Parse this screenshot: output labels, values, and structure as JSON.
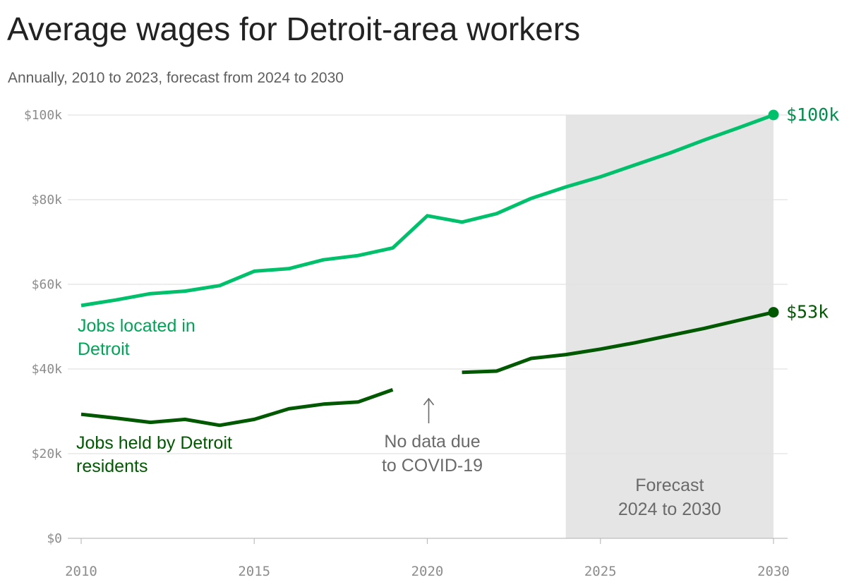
{
  "header": {
    "title": "Average wages for Detroit-area workers",
    "subtitle": "Annually, 2010 to 2023, forecast from 2024 to 2030"
  },
  "chart_data": {
    "type": "line",
    "title": "Average wages for Detroit-area workers",
    "subtitle": "Annually, 2010 to 2023, forecast from 2024 to 2030",
    "xlabel": "",
    "ylabel": "",
    "xlim": [
      2010,
      2030
    ],
    "ylim": [
      0,
      100000
    ],
    "x_ticks": [
      2010,
      2015,
      2020,
      2025,
      2030
    ],
    "x_tick_labels": [
      "2010",
      "2015",
      "2020",
      "2025",
      "2030"
    ],
    "y_ticks": [
      0,
      20000,
      40000,
      60000,
      80000,
      100000
    ],
    "y_tick_labels": [
      "$0",
      "$20k",
      "$40k",
      "$60k",
      "$80k",
      "$100k"
    ],
    "grid": "horizontal",
    "series": [
      {
        "name": "Jobs located in Detroit",
        "label_lines": [
          "Jobs located in",
          "Detroit"
        ],
        "color": "#00c06b",
        "label_color": "#00a457",
        "end_label": "$100k",
        "end_label_color": "#008f4c",
        "segments": [
          [
            [
              2010,
              55000
            ],
            [
              2011,
              56300
            ],
            [
              2012,
              57800
            ],
            [
              2013,
              58400
            ],
            [
              2014,
              59700
            ],
            [
              2015,
              63100
            ],
            [
              2016,
              63700
            ],
            [
              2017,
              65800
            ],
            [
              2018,
              66800
            ],
            [
              2019,
              68600
            ],
            [
              2020,
              76200
            ],
            [
              2021,
              74700
            ],
            [
              2022,
              76700
            ],
            [
              2023,
              80300
            ],
            [
              2024,
              83000
            ],
            [
              2025,
              85400
            ],
            [
              2026,
              88200
            ],
            [
              2027,
              91000
            ],
            [
              2028,
              94100
            ],
            [
              2029,
              97000
            ],
            [
              2030,
              100000
            ]
          ]
        ]
      },
      {
        "name": "Jobs held by Detroit residents",
        "label_lines": [
          "Jobs held by Detroit",
          "residents"
        ],
        "color": "#005800",
        "label_color": "#005800",
        "end_label": "$53k",
        "end_label_color": "#005800",
        "segments": [
          [
            [
              2010,
              29300
            ],
            [
              2011,
              28400
            ],
            [
              2012,
              27400
            ],
            [
              2013,
              28100
            ],
            [
              2014,
              26700
            ],
            [
              2015,
              28100
            ],
            [
              2016,
              30600
            ],
            [
              2017,
              31700
            ],
            [
              2018,
              32200
            ],
            [
              2019,
              35100
            ]
          ],
          [
            [
              2021,
              39200
            ],
            [
              2022,
              39500
            ],
            [
              2023,
              42500
            ],
            [
              2024,
              43400
            ],
            [
              2025,
              44700
            ],
            [
              2026,
              46200
            ],
            [
              2027,
              47900
            ],
            [
              2028,
              49600
            ],
            [
              2029,
              51500
            ],
            [
              2030,
              53400
            ]
          ]
        ]
      }
    ],
    "forecast_band": {
      "from": 2024,
      "to": 2030,
      "color": "#e5e5e5",
      "label_lines": [
        "Forecast",
        "2024 to 2030"
      ]
    },
    "annotations": [
      {
        "text_lines": [
          "No data due",
          "to COVID-19"
        ],
        "arrow": "up",
        "x": 2020
      }
    ]
  }
}
